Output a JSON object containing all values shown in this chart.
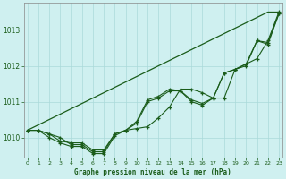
{
  "xlabel": "Graphe pression niveau de la mer (hPa)",
  "background_color": "#cff0f0",
  "grid_color": "#aadada",
  "line_color": "#1a5c1a",
  "x": [
    0,
    1,
    2,
    3,
    4,
    5,
    6,
    7,
    8,
    9,
    10,
    11,
    12,
    13,
    14,
    15,
    16,
    17,
    18,
    19,
    20,
    21,
    22,
    23
  ],
  "series_straight": [
    1010.2,
    1010.35,
    1010.5,
    1010.65,
    1010.8,
    1010.95,
    1011.1,
    1011.25,
    1011.4,
    1011.55,
    1011.7,
    1011.85,
    1012.0,
    1012.15,
    1012.3,
    1012.45,
    1012.6,
    1012.75,
    1012.9,
    1013.05,
    1013.2,
    1013.35,
    1013.5,
    1013.5
  ],
  "series1": [
    1010.2,
    1010.2,
    1010.1,
    1010.0,
    1009.8,
    1009.8,
    1009.6,
    1009.6,
    1010.1,
    1010.2,
    1010.25,
    1010.3,
    1010.55,
    1010.85,
    1011.35,
    1011.35,
    1011.25,
    1011.1,
    1011.1,
    1011.9,
    1012.05,
    1012.2,
    1012.7,
    1013.5
  ],
  "series2": [
    1010.2,
    1010.2,
    1010.0,
    1009.85,
    1009.75,
    1009.75,
    1009.55,
    1009.55,
    1010.05,
    1010.2,
    1010.45,
    1011.05,
    1011.15,
    1011.35,
    1011.3,
    1011.05,
    1010.95,
    1011.1,
    1011.8,
    1011.9,
    1012.0,
    1012.7,
    1012.65,
    1013.45
  ],
  "series3": [
    1010.2,
    1010.2,
    1010.1,
    1009.9,
    1009.85,
    1009.85,
    1009.65,
    1009.65,
    1010.1,
    1010.2,
    1010.4,
    1011.0,
    1011.1,
    1011.3,
    1011.3,
    1011.0,
    1010.9,
    1011.1,
    1011.8,
    1011.9,
    1012.05,
    1012.7,
    1012.6,
    1013.45
  ],
  "ylim": [
    1009.45,
    1013.75
  ],
  "yticks": [
    1010,
    1011,
    1012,
    1013
  ],
  "xlim": [
    -0.3,
    23.3
  ]
}
